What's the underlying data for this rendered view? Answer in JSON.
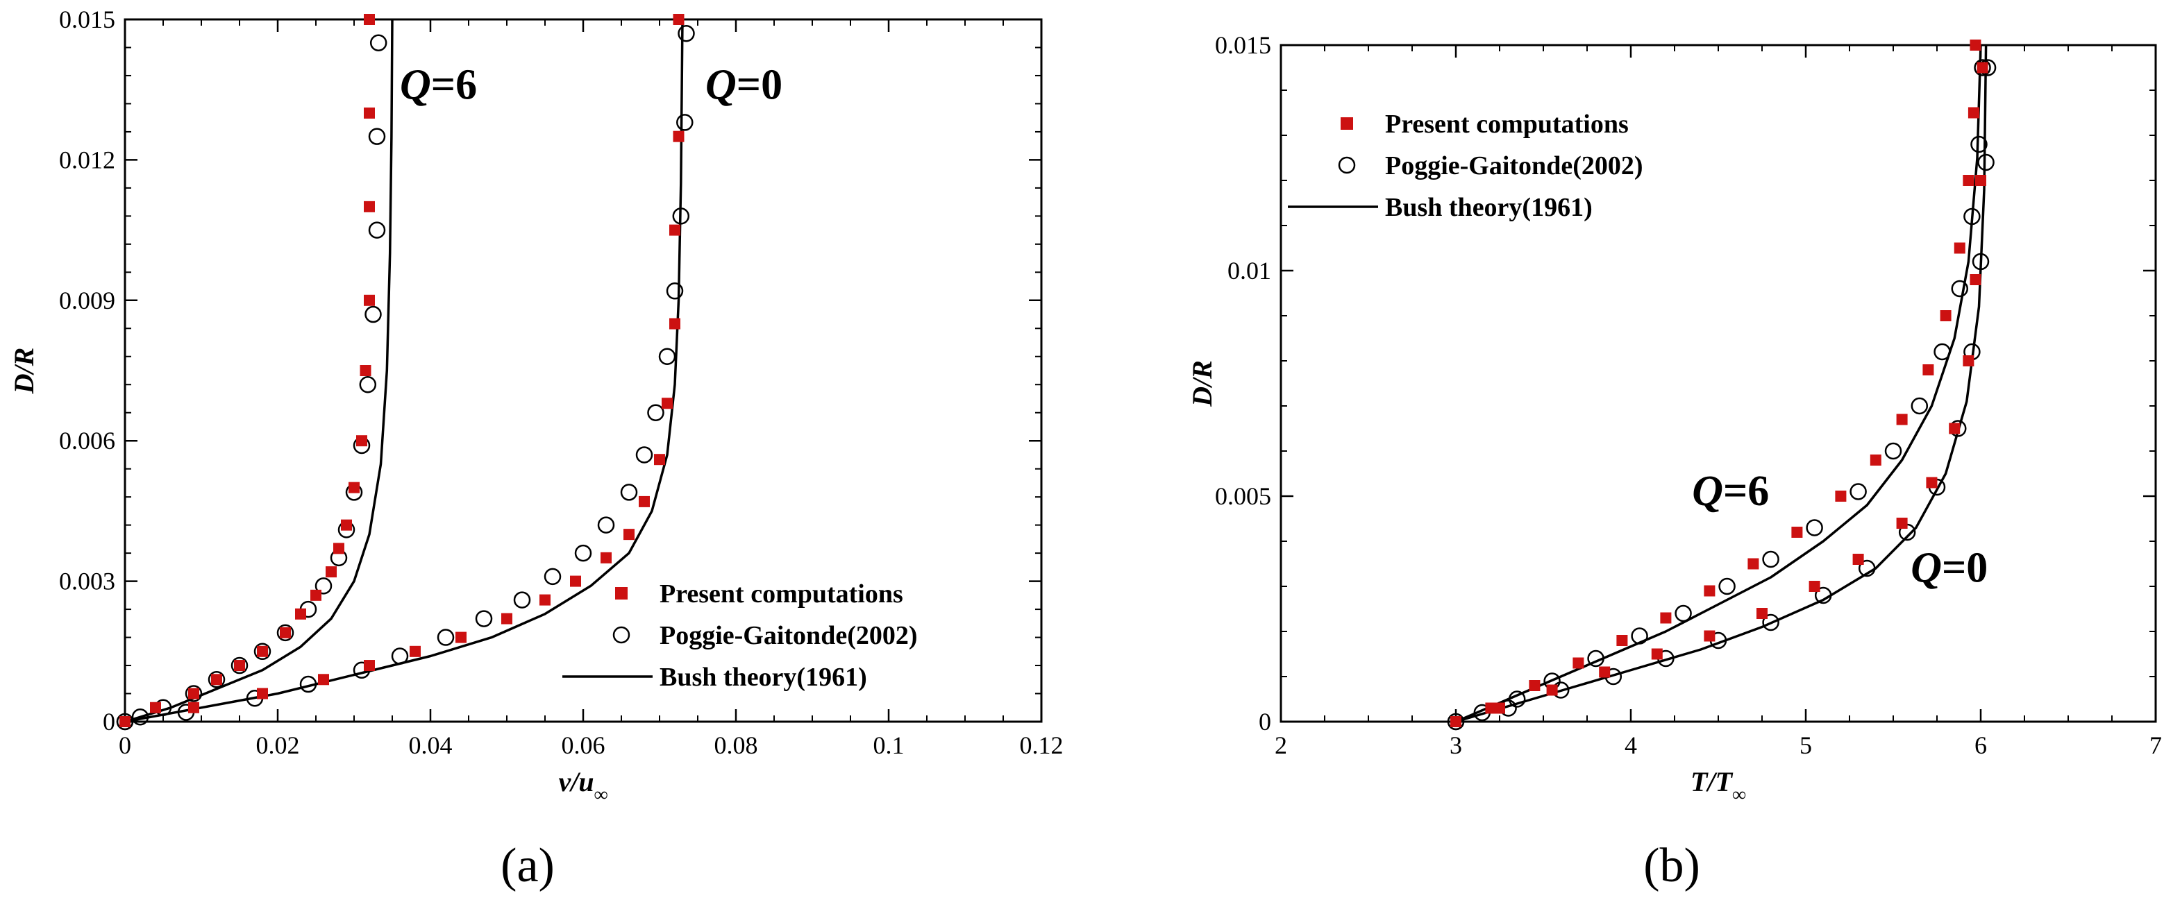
{
  "chart_data": [
    {
      "type": "scatter",
      "panel_label": "(a)",
      "xlabel": "v/u",
      "xlabel_sub": "∞",
      "ylabel": "D/R",
      "xlim": [
        0,
        0.12
      ],
      "ylim": [
        0,
        0.015
      ],
      "xticks": [
        0,
        0.02,
        0.04,
        0.06,
        0.08,
        0.1,
        0.12
      ],
      "xtick_labels": [
        "0",
        "0.02",
        "0.04",
        "0.06",
        "0.08",
        "0.1",
        "0.12"
      ],
      "yticks": [
        0,
        0.003,
        0.006,
        0.009,
        0.012,
        0.015
      ],
      "ytick_labels": [
        "0",
        "0.003",
        "0.006",
        "0.009",
        "0.012",
        "0.015"
      ],
      "grid": false,
      "legend_position": "bottom-right",
      "annotations": [
        {
          "var": "Q",
          "rest": "=6",
          "x": 0.036,
          "y": 0.0133
        },
        {
          "var": "Q",
          "rest": "=0",
          "x": 0.076,
          "y": 0.0133
        }
      ],
      "series": [
        {
          "name": "Present computations",
          "style": "square",
          "color": "#cc1111",
          "x": [
            0,
            0.004,
            0.009,
            0.012,
            0.015,
            0.018,
            0.021,
            0.023,
            0.025,
            0.027,
            0.028,
            0.029,
            0.03,
            0.031,
            0.0315,
            0.032,
            0.032,
            0.032,
            0.032
          ],
          "y": [
            0,
            0.0003,
            0.0006,
            0.0009,
            0.0012,
            0.0015,
            0.0019,
            0.0023,
            0.0027,
            0.0032,
            0.0037,
            0.0042,
            0.005,
            0.006,
            0.0075,
            0.009,
            0.011,
            0.013,
            0.015
          ]
        },
        {
          "name": "Present computations",
          "style": "square",
          "color": "#cc1111",
          "x": [
            0,
            0.009,
            0.018,
            0.026,
            0.032,
            0.038,
            0.044,
            0.05,
            0.055,
            0.059,
            0.063,
            0.066,
            0.068,
            0.07,
            0.071,
            0.072,
            0.072,
            0.0725,
            0.0725
          ],
          "y": [
            0,
            0.0003,
            0.0006,
            0.0009,
            0.0012,
            0.0015,
            0.0018,
            0.0022,
            0.0026,
            0.003,
            0.0035,
            0.004,
            0.0047,
            0.0056,
            0.0068,
            0.0085,
            0.0105,
            0.0125,
            0.015
          ]
        },
        {
          "name": "Poggie-Gaitonde(2002)",
          "style": "circle",
          "color": "#000000",
          "x": [
            0,
            0.002,
            0.005,
            0.009,
            0.012,
            0.015,
            0.018,
            0.021,
            0.024,
            0.026,
            0.028,
            0.029,
            0.03,
            0.031,
            0.0318,
            0.0325,
            0.033,
            0.033,
            0.0332
          ],
          "y": [
            0,
            0.0001,
            0.0003,
            0.0006,
            0.0009,
            0.0012,
            0.0015,
            0.0019,
            0.0024,
            0.0029,
            0.0035,
            0.0041,
            0.0049,
            0.0059,
            0.0072,
            0.0087,
            0.0105,
            0.0125,
            0.0145
          ]
        },
        {
          "name": "Poggie-Gaitonde(2002)",
          "style": "circle",
          "color": "#000000",
          "x": [
            0,
            0.008,
            0.017,
            0.024,
            0.031,
            0.036,
            0.042,
            0.047,
            0.052,
            0.056,
            0.06,
            0.063,
            0.066,
            0.068,
            0.0695,
            0.071,
            0.072,
            0.0728,
            0.0733,
            0.0735
          ],
          "y": [
            0,
            0.0002,
            0.0005,
            0.0008,
            0.0011,
            0.0014,
            0.0018,
            0.0022,
            0.0026,
            0.0031,
            0.0036,
            0.0042,
            0.0049,
            0.0057,
            0.0066,
            0.0078,
            0.0092,
            0.0108,
            0.0128,
            0.0147
          ]
        },
        {
          "name": "Bush theory(1961)",
          "style": "line",
          "color": "#000000",
          "x": [
            0,
            0.006,
            0.012,
            0.018,
            0.023,
            0.027,
            0.03,
            0.032,
            0.0335,
            0.0343,
            0.0347,
            0.0349,
            0.035
          ],
          "y": [
            0,
            0.0003,
            0.0007,
            0.0011,
            0.0016,
            0.0022,
            0.003,
            0.004,
            0.0055,
            0.0075,
            0.01,
            0.0125,
            0.015
          ]
        },
        {
          "name": "Bush theory(1961)",
          "style": "line",
          "color": "#000000",
          "x": [
            0,
            0.01,
            0.02,
            0.03,
            0.04,
            0.048,
            0.055,
            0.061,
            0.066,
            0.069,
            0.071,
            0.072,
            0.0725,
            0.0728,
            0.073
          ],
          "y": [
            0,
            0.0003,
            0.0006,
            0.001,
            0.0014,
            0.0018,
            0.0023,
            0.0029,
            0.0036,
            0.0045,
            0.0057,
            0.0072,
            0.009,
            0.0115,
            0.015
          ]
        }
      ],
      "legend": [
        {
          "label": "Present computations",
          "style": "square"
        },
        {
          "label": "Poggie-Gaitonde(2002)",
          "style": "circle"
        },
        {
          "label": "Bush theory(1961)",
          "style": "line"
        }
      ]
    },
    {
      "type": "scatter",
      "panel_label": "(b)",
      "xlabel": "T/T",
      "xlabel_sub": "∞",
      "ylabel": "D/R",
      "xlim": [
        2,
        7
      ],
      "ylim": [
        0,
        0.015
      ],
      "xticks": [
        2,
        3,
        4,
        5,
        6,
        7
      ],
      "xtick_labels": [
        "2",
        "3",
        "4",
        "5",
        "6",
        "7"
      ],
      "yticks": [
        0,
        0.005,
        0.01,
        0.015
      ],
      "ytick_labels": [
        "0",
        "0.005",
        "0.01",
        "0.015"
      ],
      "grid": false,
      "legend_position": "top-left",
      "annotations": [
        {
          "var": "Q",
          "rest": "=6",
          "x": 4.35,
          "y": 0.0048
        },
        {
          "var": "Q",
          "rest": "=0",
          "x": 5.6,
          "y": 0.0031
        }
      ],
      "series": [
        {
          "name": "Present computations",
          "style": "square",
          "color": "#cc1111",
          "x": [
            3.0,
            3.2,
            3.45,
            3.7,
            3.95,
            4.2,
            4.45,
            4.7,
            4.95,
            5.2,
            5.4,
            5.55,
            5.7,
            5.8,
            5.88,
            5.93,
            5.96,
            5.97
          ],
          "y": [
            0,
            0.0003,
            0.0008,
            0.0013,
            0.0018,
            0.0023,
            0.0029,
            0.0035,
            0.0042,
            0.005,
            0.0058,
            0.0067,
            0.0078,
            0.009,
            0.0105,
            0.012,
            0.0135,
            0.015
          ]
        },
        {
          "name": "Present computations",
          "style": "square",
          "color": "#cc1111",
          "x": [
            3.0,
            3.25,
            3.55,
            3.85,
            4.15,
            4.45,
            4.75,
            5.05,
            5.3,
            5.55,
            5.72,
            5.85,
            5.93,
            5.97,
            6.0,
            6.01
          ],
          "y": [
            0,
            0.0003,
            0.0007,
            0.0011,
            0.0015,
            0.0019,
            0.0024,
            0.003,
            0.0036,
            0.0044,
            0.0053,
            0.0065,
            0.008,
            0.0098,
            0.012,
            0.0145
          ]
        },
        {
          "name": "Poggie-Gaitonde(2002)",
          "style": "circle",
          "color": "#000000",
          "x": [
            3.0,
            3.15,
            3.35,
            3.55,
            3.8,
            4.05,
            4.3,
            4.55,
            4.8,
            5.05,
            5.3,
            5.5,
            5.65,
            5.78,
            5.88,
            5.95,
            5.99,
            6.01
          ],
          "y": [
            0,
            0.0002,
            0.0005,
            0.0009,
            0.0014,
            0.0019,
            0.0024,
            0.003,
            0.0036,
            0.0043,
            0.0051,
            0.006,
            0.007,
            0.0082,
            0.0096,
            0.0112,
            0.0128,
            0.0145
          ]
        },
        {
          "name": "Poggie-Gaitonde(2002)",
          "style": "circle",
          "color": "#000000",
          "x": [
            3.0,
            3.3,
            3.6,
            3.9,
            4.2,
            4.5,
            4.8,
            5.1,
            5.35,
            5.58,
            5.75,
            5.87,
            5.95,
            6.0,
            6.03,
            6.04
          ],
          "y": [
            0,
            0.0003,
            0.0007,
            0.001,
            0.0014,
            0.0018,
            0.0022,
            0.0028,
            0.0034,
            0.0042,
            0.0052,
            0.0065,
            0.0082,
            0.0102,
            0.0124,
            0.0145
          ]
        },
        {
          "name": "Bush theory(1961)",
          "style": "line",
          "color": "#000000",
          "x": [
            3.0,
            3.3,
            3.6,
            3.9,
            4.2,
            4.5,
            4.8,
            5.1,
            5.35,
            5.55,
            5.72,
            5.85,
            5.93,
            5.98,
            6.0
          ],
          "y": [
            0,
            0.0005,
            0.001,
            0.0015,
            0.002,
            0.0026,
            0.0032,
            0.004,
            0.0048,
            0.0058,
            0.007,
            0.0085,
            0.0102,
            0.0125,
            0.015
          ]
        },
        {
          "name": "Bush theory(1961)",
          "style": "line",
          "color": "#000000",
          "x": [
            3.0,
            3.35,
            3.7,
            4.05,
            4.4,
            4.75,
            5.1,
            5.4,
            5.63,
            5.8,
            5.92,
            5.99,
            6.02,
            6.03
          ],
          "y": [
            0,
            0.0004,
            0.0008,
            0.0012,
            0.0016,
            0.0021,
            0.0027,
            0.0034,
            0.0043,
            0.0055,
            0.0071,
            0.0092,
            0.0118,
            0.015
          ]
        }
      ],
      "legend": [
        {
          "label": "Present computations",
          "style": "square"
        },
        {
          "label": "Poggie-Gaitonde(2002)",
          "style": "circle"
        },
        {
          "label": "Bush theory(1961)",
          "style": "line"
        }
      ]
    }
  ]
}
